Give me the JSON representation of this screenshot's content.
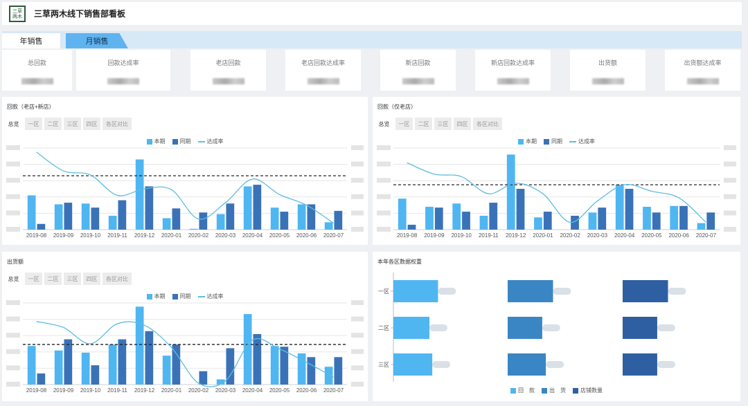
{
  "header": {
    "logo_top": "三草",
    "logo_bottom": "两木",
    "title": "三草两木线下销售部看板"
  },
  "tabs": [
    {
      "label": "年销售"
    },
    {
      "label": "月销售"
    }
  ],
  "kpis": [
    {
      "label": "总回款"
    },
    {
      "label": "回款达成率"
    },
    {
      "label": "老店回款"
    },
    {
      "label": "老店回款达成率"
    },
    {
      "label": "新店回款"
    },
    {
      "label": "新店回款达成率"
    },
    {
      "label": "出货额"
    },
    {
      "label": "出货额达成率"
    }
  ],
  "filters": {
    "total": "总览",
    "regions": [
      "一区",
      "二区",
      "三区",
      "四区",
      "各区对比"
    ]
  },
  "legend": {
    "current": "本期",
    "previous": "同期",
    "rate": "达成率"
  },
  "colors": {
    "current": "#4fb6f2",
    "previous": "#3a72b8",
    "rate": "#5bbde0",
    "target": "#222222"
  },
  "panels": {
    "total": {
      "title": "回款（老店+新店）"
    },
    "old": {
      "title": "回款（仅老店）"
    },
    "shipment": {
      "title": "出货额"
    },
    "weights": {
      "title": "本年各区数据权重"
    }
  },
  "chart_data": [
    {
      "type": "bar",
      "categories": [
        "2019-08",
        "2019-09",
        "2019-10",
        "2019-11",
        "2019-12",
        "2020-01",
        "2020-02",
        "2020-03",
        "2020-04",
        "2020-05",
        "2020-06",
        "2020-07"
      ],
      "series": [
        {
          "name": "本期",
          "values": [
            42,
            31,
            32,
            17,
            86,
            14,
            1,
            19,
            53,
            27,
            31,
            9
          ]
        },
        {
          "name": "同期",
          "values": [
            7,
            33,
            27,
            36,
            53,
            26,
            21,
            32,
            55,
            22,
            31,
            23
          ]
        },
        {
          "name": "达成率",
          "values": [
            95,
            72,
            67,
            42,
            50,
            49,
            13,
            33,
            62,
            43,
            30,
            8
          ]
        }
      ],
      "target": 66,
      "ylim": [
        0,
        100
      ]
    },
    {
      "type": "bar",
      "categories": [
        "2019-08",
        "2019-09",
        "2019-10",
        "2019-11",
        "2019-12",
        "2020-01",
        "2020-02",
        "2020-03",
        "2020-04",
        "2020-05",
        "2020-06",
        "2020-07"
      ],
      "series": [
        {
          "name": "本期",
          "values": [
            38,
            28,
            32,
            17,
            92,
            15,
            0,
            21,
            55,
            28,
            29,
            8
          ]
        },
        {
          "name": "同期",
          "values": [
            6,
            27,
            22,
            33,
            50,
            22,
            17,
            27,
            50,
            21,
            29,
            21
          ]
        },
        {
          "name": "达成率",
          "values": [
            82,
            68,
            65,
            44,
            57,
            44,
            9,
            35,
            55,
            47,
            39,
            9
          ]
        }
      ],
      "target": 55,
      "ylim": [
        0,
        100
      ]
    },
    {
      "type": "bar",
      "categories": [
        "2019-08",
        "2019-09",
        "2019-10",
        "2019-11",
        "2019-12",
        "2020-01",
        "2020-02",
        "2020-03",
        "2020-04",
        "2020-05",
        "2020-06",
        "2020-07"
      ],
      "series": [
        {
          "name": "本期",
          "values": [
            52,
            46,
            43,
            54,
            105,
            39,
            0,
            7,
            95,
            52,
            42,
            24
          ]
        },
        {
          "name": "同期",
          "values": [
            15,
            61,
            26,
            61,
            72,
            54,
            18,
            49,
            68,
            51,
            37,
            37
          ]
        },
        {
          "name": "达成率",
          "values": [
            85,
            77,
            55,
            82,
            80,
            50,
            2,
            5,
            60,
            48,
            30,
            10
          ]
        }
      ],
      "target": 54,
      "ylim": [
        0,
        110
      ]
    },
    {
      "type": "bar",
      "orientation": "horizontal",
      "categories": [
        "一区",
        "二区",
        "三区"
      ],
      "series": [
        {
          "name": "回　款",
          "values": [
            62,
            50,
            54
          ]
        },
        {
          "name": "出　货",
          "values": [
            63,
            48,
            53
          ]
        },
        {
          "name": "店铺数量",
          "values": [
            63,
            48,
            48
          ]
        }
      ],
      "colors": [
        "#4fb6f2",
        "#3a86c4",
        "#2f5fa3"
      ]
    }
  ]
}
